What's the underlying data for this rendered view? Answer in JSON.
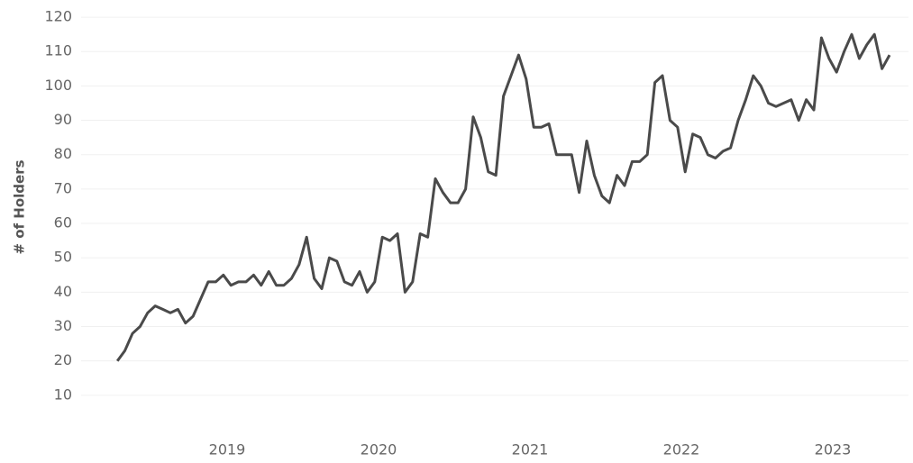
{
  "chart_data": {
    "type": "line",
    "y_label": "# of Holders",
    "x": [
      2018.275,
      2018.325,
      2018.375,
      2018.425,
      2018.475,
      2018.525,
      2018.575,
      2018.625,
      2018.675,
      2018.725,
      2018.775,
      2018.825,
      2018.875,
      2018.925,
      2018.975,
      2019.025,
      2019.075,
      2019.125,
      2019.175,
      2019.225,
      2019.275,
      2019.325,
      2019.375,
      2019.425,
      2019.475,
      2019.525,
      2019.575,
      2019.625,
      2019.675,
      2019.725,
      2019.775,
      2019.825,
      2019.875,
      2019.925,
      2019.975,
      2020.025,
      2020.075,
      2020.125,
      2020.175,
      2020.225,
      2020.275,
      2020.325,
      2020.375,
      2020.425,
      2020.475,
      2020.525,
      2020.575,
      2020.625,
      2020.675,
      2020.725,
      2020.775,
      2020.825,
      2020.875,
      2020.925,
      2020.975,
      2021.025,
      2021.075,
      2021.125,
      2021.175,
      2021.225,
      2021.275,
      2021.325,
      2021.375,
      2021.425,
      2021.475,
      2021.525,
      2021.575,
      2021.625,
      2021.675,
      2021.725,
      2021.775,
      2021.825,
      2021.875,
      2021.925,
      2021.975,
      2022.025,
      2022.075,
      2022.125,
      2022.175,
      2022.225,
      2022.275,
      2022.325,
      2022.375,
      2022.425,
      2022.475,
      2022.525,
      2022.575,
      2022.625,
      2022.675,
      2022.725,
      2022.775,
      2022.825,
      2022.875,
      2022.925,
      2022.975,
      2023.025,
      2023.075,
      2023.125,
      2023.175,
      2023.225,
      2023.275,
      2023.325,
      2023.375
    ],
    "series": [
      {
        "color": "#4a4a4a",
        "values": [
          20,
          23,
          28,
          30,
          34,
          36,
          35,
          34,
          35,
          31,
          33,
          38,
          43,
          43,
          45,
          42,
          43,
          43,
          45,
          42,
          46,
          42,
          42,
          44,
          48,
          56,
          44,
          41,
          50,
          49,
          43,
          42,
          46,
          40,
          43,
          56,
          55,
          57,
          40,
          43,
          57,
          56,
          73,
          69,
          66,
          66,
          70,
          91,
          85,
          75,
          74,
          97,
          103,
          109,
          102,
          88,
          88,
          89,
          80,
          80,
          80,
          69,
          84,
          74,
          68,
          66,
          74,
          71,
          78,
          78,
          80,
          101,
          103,
          90,
          88,
          75,
          86,
          85,
          80,
          79,
          81,
          82,
          90,
          96,
          103,
          100,
          95,
          94,
          95,
          96,
          90,
          96,
          93,
          114,
          108,
          104,
          110,
          115,
          108,
          112,
          115,
          105,
          109
        ]
      }
    ],
    "xlim": [
      2018,
      2023.5
    ],
    "xticks": [
      2019,
      2020,
      2021,
      2022,
      2023
    ],
    "ylim": [
      0,
      125
    ],
    "yticks": [
      10,
      20,
      30,
      40,
      50,
      60,
      70,
      80,
      90,
      100,
      110,
      120
    ],
    "grid": true
  }
}
